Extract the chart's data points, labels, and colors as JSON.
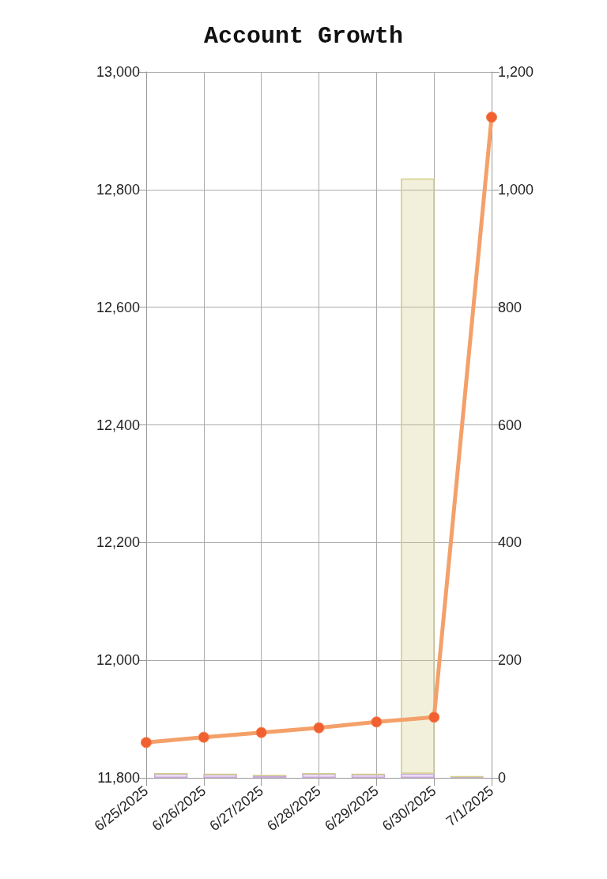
{
  "chart_data": {
    "type": "line",
    "title": "Account Growth",
    "categories": [
      "6/25/2025",
      "6/26/2025",
      "6/27/2025",
      "6/28/2025",
      "6/29/2025",
      "6/30/2025",
      "7/1/2025"
    ],
    "series": [
      {
        "color": "#f4a06a",
        "values": [
          11860,
          11869,
          11877,
          11885,
          11895,
          11903,
          12923
        ]
      },
      {
        "type": "bar",
        "axis": "y2",
        "color": "#c9a8dc",
        "values": [
          7,
          6,
          4,
          7,
          6,
          7,
          2
        ]
      },
      {
        "type": "bar",
        "axis": "y2",
        "color": "#d4cd86",
        "values": [
          0,
          0,
          0,
          0,
          0,
          1012,
          0
        ]
      }
    ],
    "stacked": true,
    "marker": "circle",
    "ylim": [
      11800,
      13000
    ],
    "yticks": [
      {
        "value": 11800,
        "label": "11,800"
      },
      {
        "value": 12000,
        "label": "12,000"
      },
      {
        "value": 12200,
        "label": "12,200"
      },
      {
        "value": 12400,
        "label": "12,400"
      },
      {
        "value": 12600,
        "label": "12,600"
      },
      {
        "value": 12800,
        "label": "12,800"
      },
      {
        "value": 13000,
        "label": "13,000"
      }
    ],
    "y2lim": [
      0,
      1200
    ],
    "y2ticks": [
      0,
      200,
      400,
      600,
      800,
      {
        "value": 1000,
        "label": "1,000"
      },
      {
        "value": 1200,
        "label": "1,200"
      }
    ],
    "grid": true
  }
}
